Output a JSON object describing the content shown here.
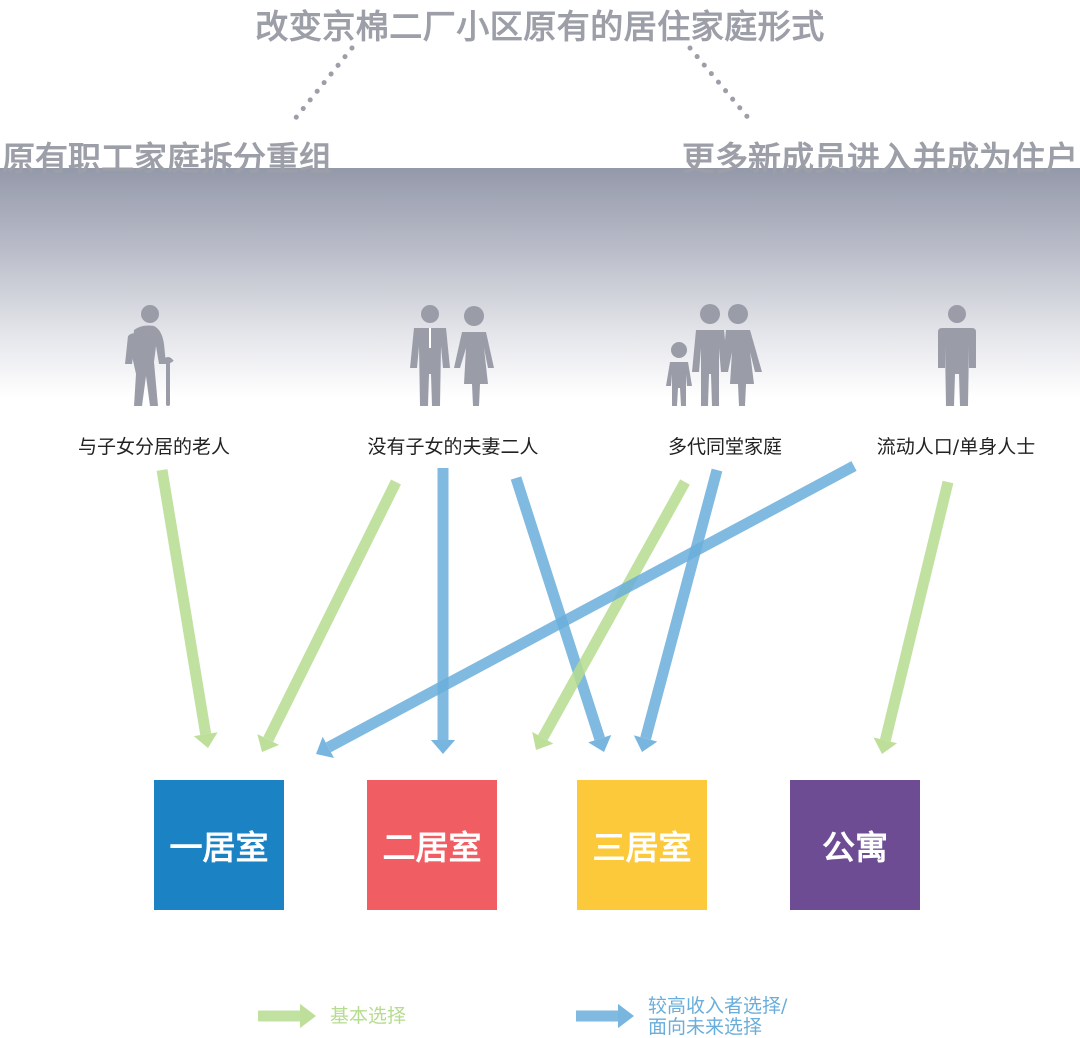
{
  "header": {
    "main_title": "改变京棉二厂小区原有的居住家庭形式",
    "left_subtitle": "原有职工家庭拆分重组",
    "right_subtitle": "更多新成员进入并成为住户"
  },
  "household_types": [
    {
      "label": "与子女分居的老人",
      "icon": "elderly-person-with-cane-icon"
    },
    {
      "label": "没有子女的夫妻二人",
      "icon": "couple-icon"
    },
    {
      "label": "多代同堂家庭",
      "icon": "family-icon"
    },
    {
      "label": "流动人口/单身人士",
      "icon": "single-person-icon"
    }
  ],
  "room_types": [
    {
      "label": "一居室",
      "color": "#1b82c4"
    },
    {
      "label": "二居室",
      "color": "#f05d63"
    },
    {
      "label": "三居室",
      "color": "#fbc93a"
    },
    {
      "label": "公寓",
      "color": "#6d4c94"
    }
  ],
  "colors": {
    "basic": "#b6dc8f",
    "higher": "#6aaedb",
    "title_gray": "#9c9ea8",
    "icon_gray": "#9a9ca8"
  },
  "legend": {
    "basic_label": "基本选择",
    "higher_label_line1": "较高收入者选择/",
    "higher_label_line2": "面向未来选择"
  },
  "connections": [
    {
      "from": "与子女分居的老人",
      "to": "一居室",
      "type": "basic"
    },
    {
      "from": "没有子女的夫妻二人",
      "to": "一居室",
      "type": "basic"
    },
    {
      "from": "没有子女的夫妻二人",
      "to": "二居室",
      "type": "higher"
    },
    {
      "from": "没有子女的夫妻二人",
      "to": "三居室",
      "type": "higher"
    },
    {
      "from": "多代同堂家庭",
      "to": "二居室",
      "type": "basic"
    },
    {
      "from": "多代同堂家庭",
      "to": "三居室",
      "type": "higher"
    },
    {
      "from": "流动人口/单身人士",
      "to": "一居室",
      "type": "higher"
    },
    {
      "from": "流动人口/单身人士",
      "to": "公寓",
      "type": "basic"
    }
  ]
}
